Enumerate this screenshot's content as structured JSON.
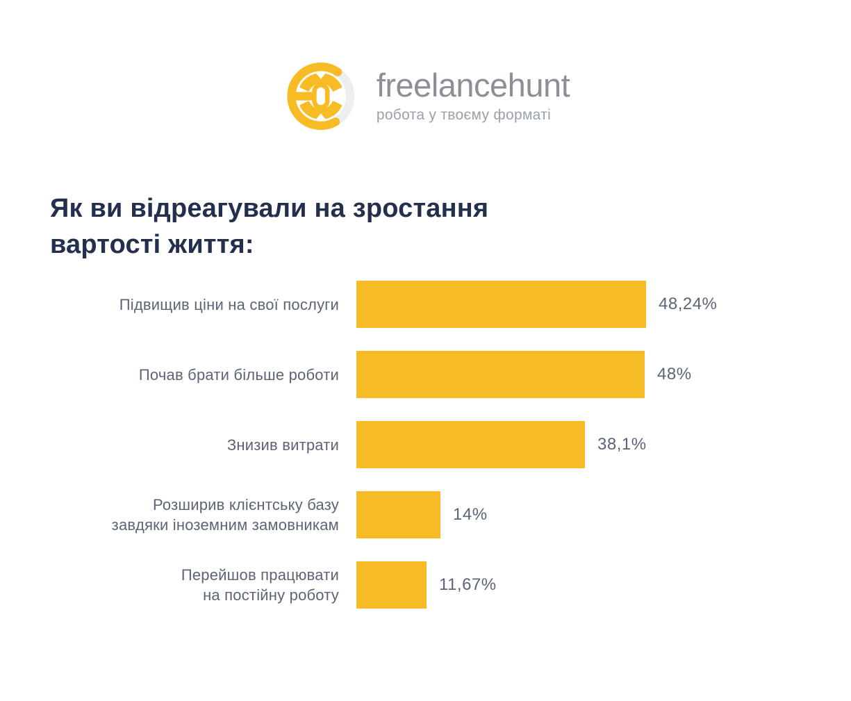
{
  "logo": {
    "wordmark": "freelancehunt",
    "tagline": "робота у твоєму форматі"
  },
  "header": {
    "title_line1": "Як ви відреагували на зростання",
    "title_line2": "вартості життя:"
  },
  "chart_data": {
    "type": "bar",
    "orientation": "horizontal",
    "title": "Як ви відреагували на зростання вартості життя:",
    "categories": [
      "Підвищив ціни на свої послуги",
      "Почав брати більше роботи",
      "Знизив витрати",
      "Розширив клієнтську базу завдяки іноземним замовникам",
      "Перейшов працювати на постійну роботу"
    ],
    "category_lines": [
      [
        "Підвищив ціни на свої послуги"
      ],
      [
        "Почав брати більше роботи"
      ],
      [
        "Знизив витрати"
      ],
      [
        "Розширив клієнтську базу",
        "завдяки іноземним замовникам"
      ],
      [
        "Перейшов працювати",
        "на постійну роботу"
      ]
    ],
    "values": [
      48.24,
      48,
      38.1,
      14,
      11.67
    ],
    "value_labels": [
      "48,24%",
      "48%",
      "38,1%",
      "14%",
      "11,67%"
    ],
    "xlim": [
      0,
      50
    ],
    "bar_color": "#F7BB26",
    "grid": false,
    "legend": false,
    "value_label_position": "right-of-bar"
  },
  "colors": {
    "accent_yellow": "#F7BB26",
    "ring_gray": "#ECEEF1",
    "title_navy": "#242F4D",
    "label_slate": "#5B6477",
    "logo_gray": "#8B9096",
    "tagline_gray": "#9AA1AA",
    "background": "#FFFFFF"
  }
}
